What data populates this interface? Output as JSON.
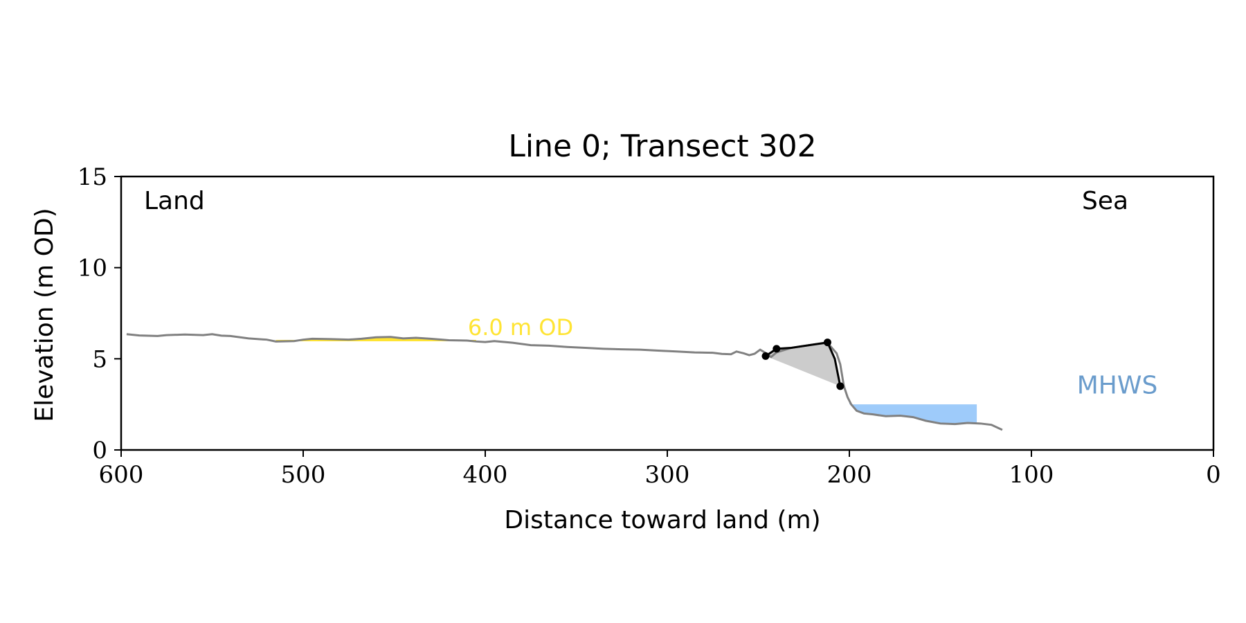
{
  "chart_data": {
    "type": "line",
    "title": "Line 0; Transect 302",
    "xlabel": "Distance toward land (m)",
    "ylabel": "Elevation (m OD)",
    "xlim": [
      600,
      0
    ],
    "ylim": [
      0,
      15
    ],
    "x_inverted": true,
    "grid": false,
    "xticks": [
      600,
      500,
      400,
      300,
      200,
      100,
      0
    ],
    "yticks": [
      0,
      5,
      10,
      15
    ],
    "xtick_labels": [
      "600",
      "500",
      "400",
      "300",
      "200",
      "100",
      "0"
    ],
    "ytick_labels": [
      "0",
      "5",
      "10",
      "15"
    ],
    "annotations": {
      "land": "Land",
      "sea": "Sea",
      "threshold_label": "6.0 m OD",
      "mhws_label": "MHWS"
    },
    "colors": {
      "profile": "#808080",
      "cliff": "#000000",
      "cliff_fill": "#cccccc",
      "threshold": "#ffe433",
      "mhws_fill": "#9ecbfa",
      "mhws_text": "#6a9ccc"
    },
    "series": [
      {
        "role": "profile",
        "points": [
          [
            597,
            6.35
          ],
          [
            590,
            6.28
          ],
          [
            580,
            6.25
          ],
          [
            575,
            6.3
          ],
          [
            565,
            6.33
          ],
          [
            555,
            6.3
          ],
          [
            550,
            6.35
          ],
          [
            545,
            6.27
          ],
          [
            540,
            6.25
          ],
          [
            530,
            6.12
          ],
          [
            520,
            6.05
          ],
          [
            515,
            5.95
          ],
          [
            505,
            5.97
          ],
          [
            500,
            6.05
          ],
          [
            495,
            6.1
          ],
          [
            485,
            6.08
          ],
          [
            475,
            6.05
          ],
          [
            468,
            6.1
          ],
          [
            460,
            6.18
          ],
          [
            452,
            6.2
          ],
          [
            445,
            6.12
          ],
          [
            438,
            6.15
          ],
          [
            430,
            6.1
          ],
          [
            420,
            6.02
          ],
          [
            410,
            6.0
          ],
          [
            405,
            5.95
          ],
          [
            400,
            5.92
          ],
          [
            395,
            5.97
          ],
          [
            385,
            5.88
          ],
          [
            375,
            5.75
          ],
          [
            365,
            5.72
          ],
          [
            355,
            5.65
          ],
          [
            345,
            5.6
          ],
          [
            335,
            5.55
          ],
          [
            325,
            5.52
          ],
          [
            315,
            5.5
          ],
          [
            305,
            5.45
          ],
          [
            295,
            5.4
          ],
          [
            285,
            5.35
          ],
          [
            275,
            5.33
          ],
          [
            270,
            5.27
          ],
          [
            265,
            5.25
          ],
          [
            262,
            5.4
          ],
          [
            258,
            5.3
          ],
          [
            255,
            5.2
          ],
          [
            252,
            5.28
          ],
          [
            249,
            5.5
          ],
          [
            246,
            5.32
          ],
          [
            243,
            5.1
          ],
          [
            240,
            5.35
          ],
          [
            232,
            5.6
          ],
          [
            222,
            5.75
          ],
          [
            212,
            5.88
          ],
          [
            207,
            5.3
          ],
          [
            205,
            4.7
          ],
          [
            203,
            3.5
          ],
          [
            201,
            2.9
          ],
          [
            199,
            2.5
          ],
          [
            196,
            2.15
          ],
          [
            192,
            2.0
          ],
          [
            187,
            1.95
          ],
          [
            180,
            1.85
          ],
          [
            172,
            1.88
          ],
          [
            165,
            1.8
          ],
          [
            158,
            1.6
          ],
          [
            150,
            1.45
          ],
          [
            142,
            1.42
          ],
          [
            135,
            1.48
          ],
          [
            128,
            1.45
          ],
          [
            122,
            1.38
          ],
          [
            117,
            1.15
          ],
          [
            116,
            1.1
          ]
        ]
      },
      {
        "role": "cliff",
        "points": [
          [
            246,
            5.15
          ],
          [
            240,
            5.55
          ],
          [
            232,
            5.6
          ],
          [
            212,
            5.9
          ],
          [
            208,
            5.0
          ],
          [
            205,
            3.5
          ]
        ],
        "markers": [
          [
            246,
            5.15
          ],
          [
            240,
            5.55
          ],
          [
            212,
            5.9
          ],
          [
            205,
            3.5
          ]
        ]
      }
    ],
    "threshold_band": {
      "x_from": 515,
      "x_to": 405,
      "level": 6.0
    },
    "mhws_band": {
      "x_from": 200,
      "x_to": 130,
      "level": 2.5
    }
  }
}
